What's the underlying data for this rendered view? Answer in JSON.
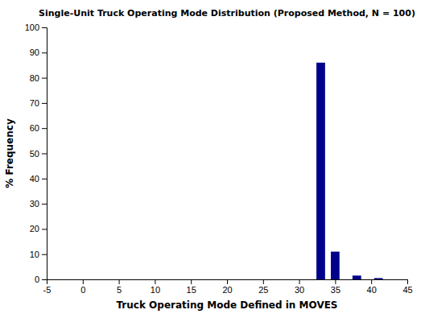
{
  "chart_data": {
    "type": "bar",
    "title": "Single-Unit Truck Operating Mode Distribution (Proposed Method, N = 100)",
    "xlabel": "Truck Operating Mode Defined in MOVES",
    "ylabel": "% Frequency",
    "x": [
      33,
      35,
      38,
      41
    ],
    "values": [
      86,
      11,
      1.5,
      0.5
    ],
    "color": "#00008B",
    "xlim": [
      -5,
      45
    ],
    "ylim": [
      0,
      100
    ],
    "xticks": [
      -5,
      0,
      5,
      10,
      15,
      20,
      25,
      30,
      35,
      40,
      45
    ],
    "yticks": [
      0,
      10,
      20,
      30,
      40,
      50,
      60,
      70,
      80,
      90,
      100
    ],
    "grid": false
  }
}
